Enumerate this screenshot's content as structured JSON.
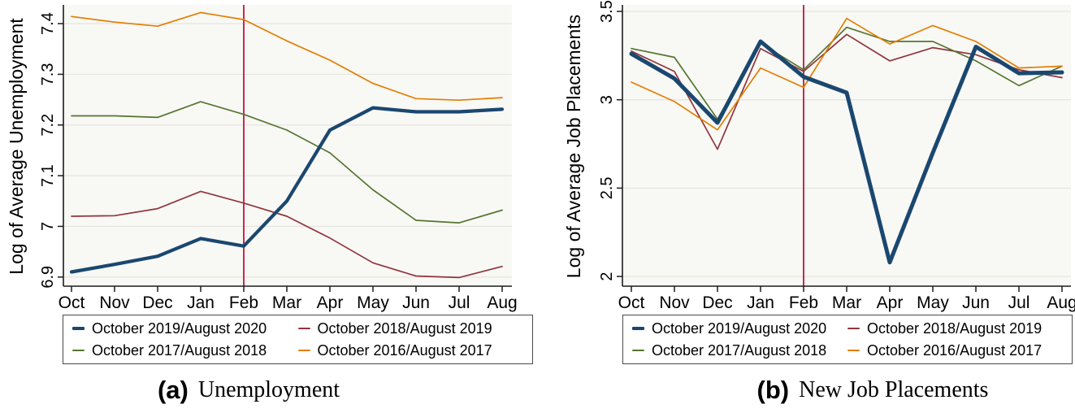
{
  "months": [
    "Oct",
    "Nov",
    "Dec",
    "Jan",
    "Feb",
    "Mar",
    "Apr",
    "May",
    "Jun",
    "Jul",
    "Aug"
  ],
  "colors": {
    "navy": "#1a476f",
    "maroon": "#90353b",
    "olive": "#55752f",
    "orange": "#e37e00",
    "vline_red": "#c10534",
    "plot_bg": "#f8f8f5",
    "grid": "#e7e5e2",
    "axis": "#1c1c1c"
  },
  "panels": [
    {
      "caption_label": "(a)",
      "caption_text": "Unemployment",
      "ylabel": "Log of Average Unemployment"
    },
    {
      "caption_label": "(b)",
      "caption_text": "New Job Placements",
      "ylabel": "Log of Average Job Placements"
    }
  ],
  "legend": {
    "entries": [
      {
        "label": "October 2019/August 2020",
        "color": "#1a476f",
        "thick": true
      },
      {
        "label": "October 2018/August 2019",
        "color": "#90353b",
        "thick": false
      },
      {
        "label": "October 2017/August 2018",
        "color": "#55752f",
        "thick": false
      },
      {
        "label": "October 2016/August 2017",
        "color": "#e37e00",
        "thick": false
      }
    ]
  },
  "chart_data": [
    {
      "type": "line",
      "title": "(a) Unemployment",
      "xlabel": "",
      "ylabel": "Log of Average Unemployment",
      "x": [
        "Oct",
        "Nov",
        "Dec",
        "Jan",
        "Feb",
        "Mar",
        "Apr",
        "May",
        "Jun",
        "Jul",
        "Aug"
      ],
      "ylim": [
        6.882,
        7.437
      ],
      "ytick_values": [
        6.9,
        7,
        7.1,
        7.2,
        7.3,
        7.4
      ],
      "ytick_labels": [
        "6.9",
        "7",
        "7.1",
        "7.2",
        "7.3",
        "7.4"
      ],
      "grid": true,
      "legend_position": "below",
      "vline_at": "Feb",
      "vline_color": "#c10534",
      "series": [
        {
          "name": "October 2019/August 2020",
          "color": "#1a476f",
          "thick": true,
          "values": [
            6.91,
            6.925,
            6.941,
            6.976,
            6.961,
            7.05,
            7.19,
            7.234,
            7.226,
            7.226,
            7.231
          ]
        },
        {
          "name": "October 2018/August 2019",
          "color": "#90353b",
          "thick": false,
          "values": [
            7.02,
            7.021,
            7.035,
            7.069,
            7.046,
            7.02,
            6.977,
            6.928,
            6.902,
            6.899,
            6.921
          ]
        },
        {
          "name": "October 2017/August 2018",
          "color": "#55752f",
          "thick": false,
          "values": [
            7.218,
            7.218,
            7.215,
            7.246,
            7.221,
            7.19,
            7.145,
            7.072,
            7.012,
            7.007,
            7.032
          ]
        },
        {
          "name": "October 2016/August 2017",
          "color": "#e37e00",
          "thick": false,
          "values": [
            7.414,
            7.403,
            7.395,
            7.422,
            7.408,
            7.366,
            7.328,
            7.282,
            7.252,
            7.249,
            7.254
          ]
        }
      ]
    },
    {
      "type": "line",
      "title": "(b) New Job Placements",
      "xlabel": "",
      "ylabel": "Log of Average Job Placements",
      "x": [
        "Oct",
        "Nov",
        "Dec",
        "Jan",
        "Feb",
        "Mar",
        "Apr",
        "May",
        "Jun",
        "Jul",
        "Aug"
      ],
      "ylim": [
        1.945,
        3.537
      ],
      "ytick_values": [
        2,
        2.5,
        3,
        3.5
      ],
      "ytick_labels": [
        "2",
        "2.5",
        "3",
        "3.5"
      ],
      "grid": true,
      "legend_position": "below",
      "vline_at": "Feb",
      "vline_color": "#c10534",
      "series": [
        {
          "name": "October 2019/August 2020",
          "color": "#1a476f",
          "thick": true,
          "values": [
            3.26,
            3.12,
            2.87,
            3.33,
            3.13,
            3.04,
            2.08,
            2.7,
            3.3,
            3.15,
            3.155
          ]
        },
        {
          "name": "October 2018/August 2019",
          "color": "#90353b",
          "thick": false,
          "values": [
            3.275,
            3.16,
            2.72,
            3.29,
            3.16,
            3.37,
            3.22,
            3.295,
            3.255,
            3.17,
            3.125
          ]
        },
        {
          "name": "October 2017/August 2018",
          "color": "#55752f",
          "thick": false,
          "values": [
            3.29,
            3.24,
            2.89,
            3.32,
            3.17,
            3.41,
            3.33,
            3.33,
            3.22,
            3.08,
            3.19
          ]
        },
        {
          "name": "October 2016/August 2017",
          "color": "#e37e00",
          "thick": false,
          "values": [
            3.1,
            2.99,
            2.83,
            3.18,
            3.07,
            3.46,
            3.315,
            3.42,
            3.33,
            3.18,
            3.19
          ]
        }
      ]
    }
  ]
}
